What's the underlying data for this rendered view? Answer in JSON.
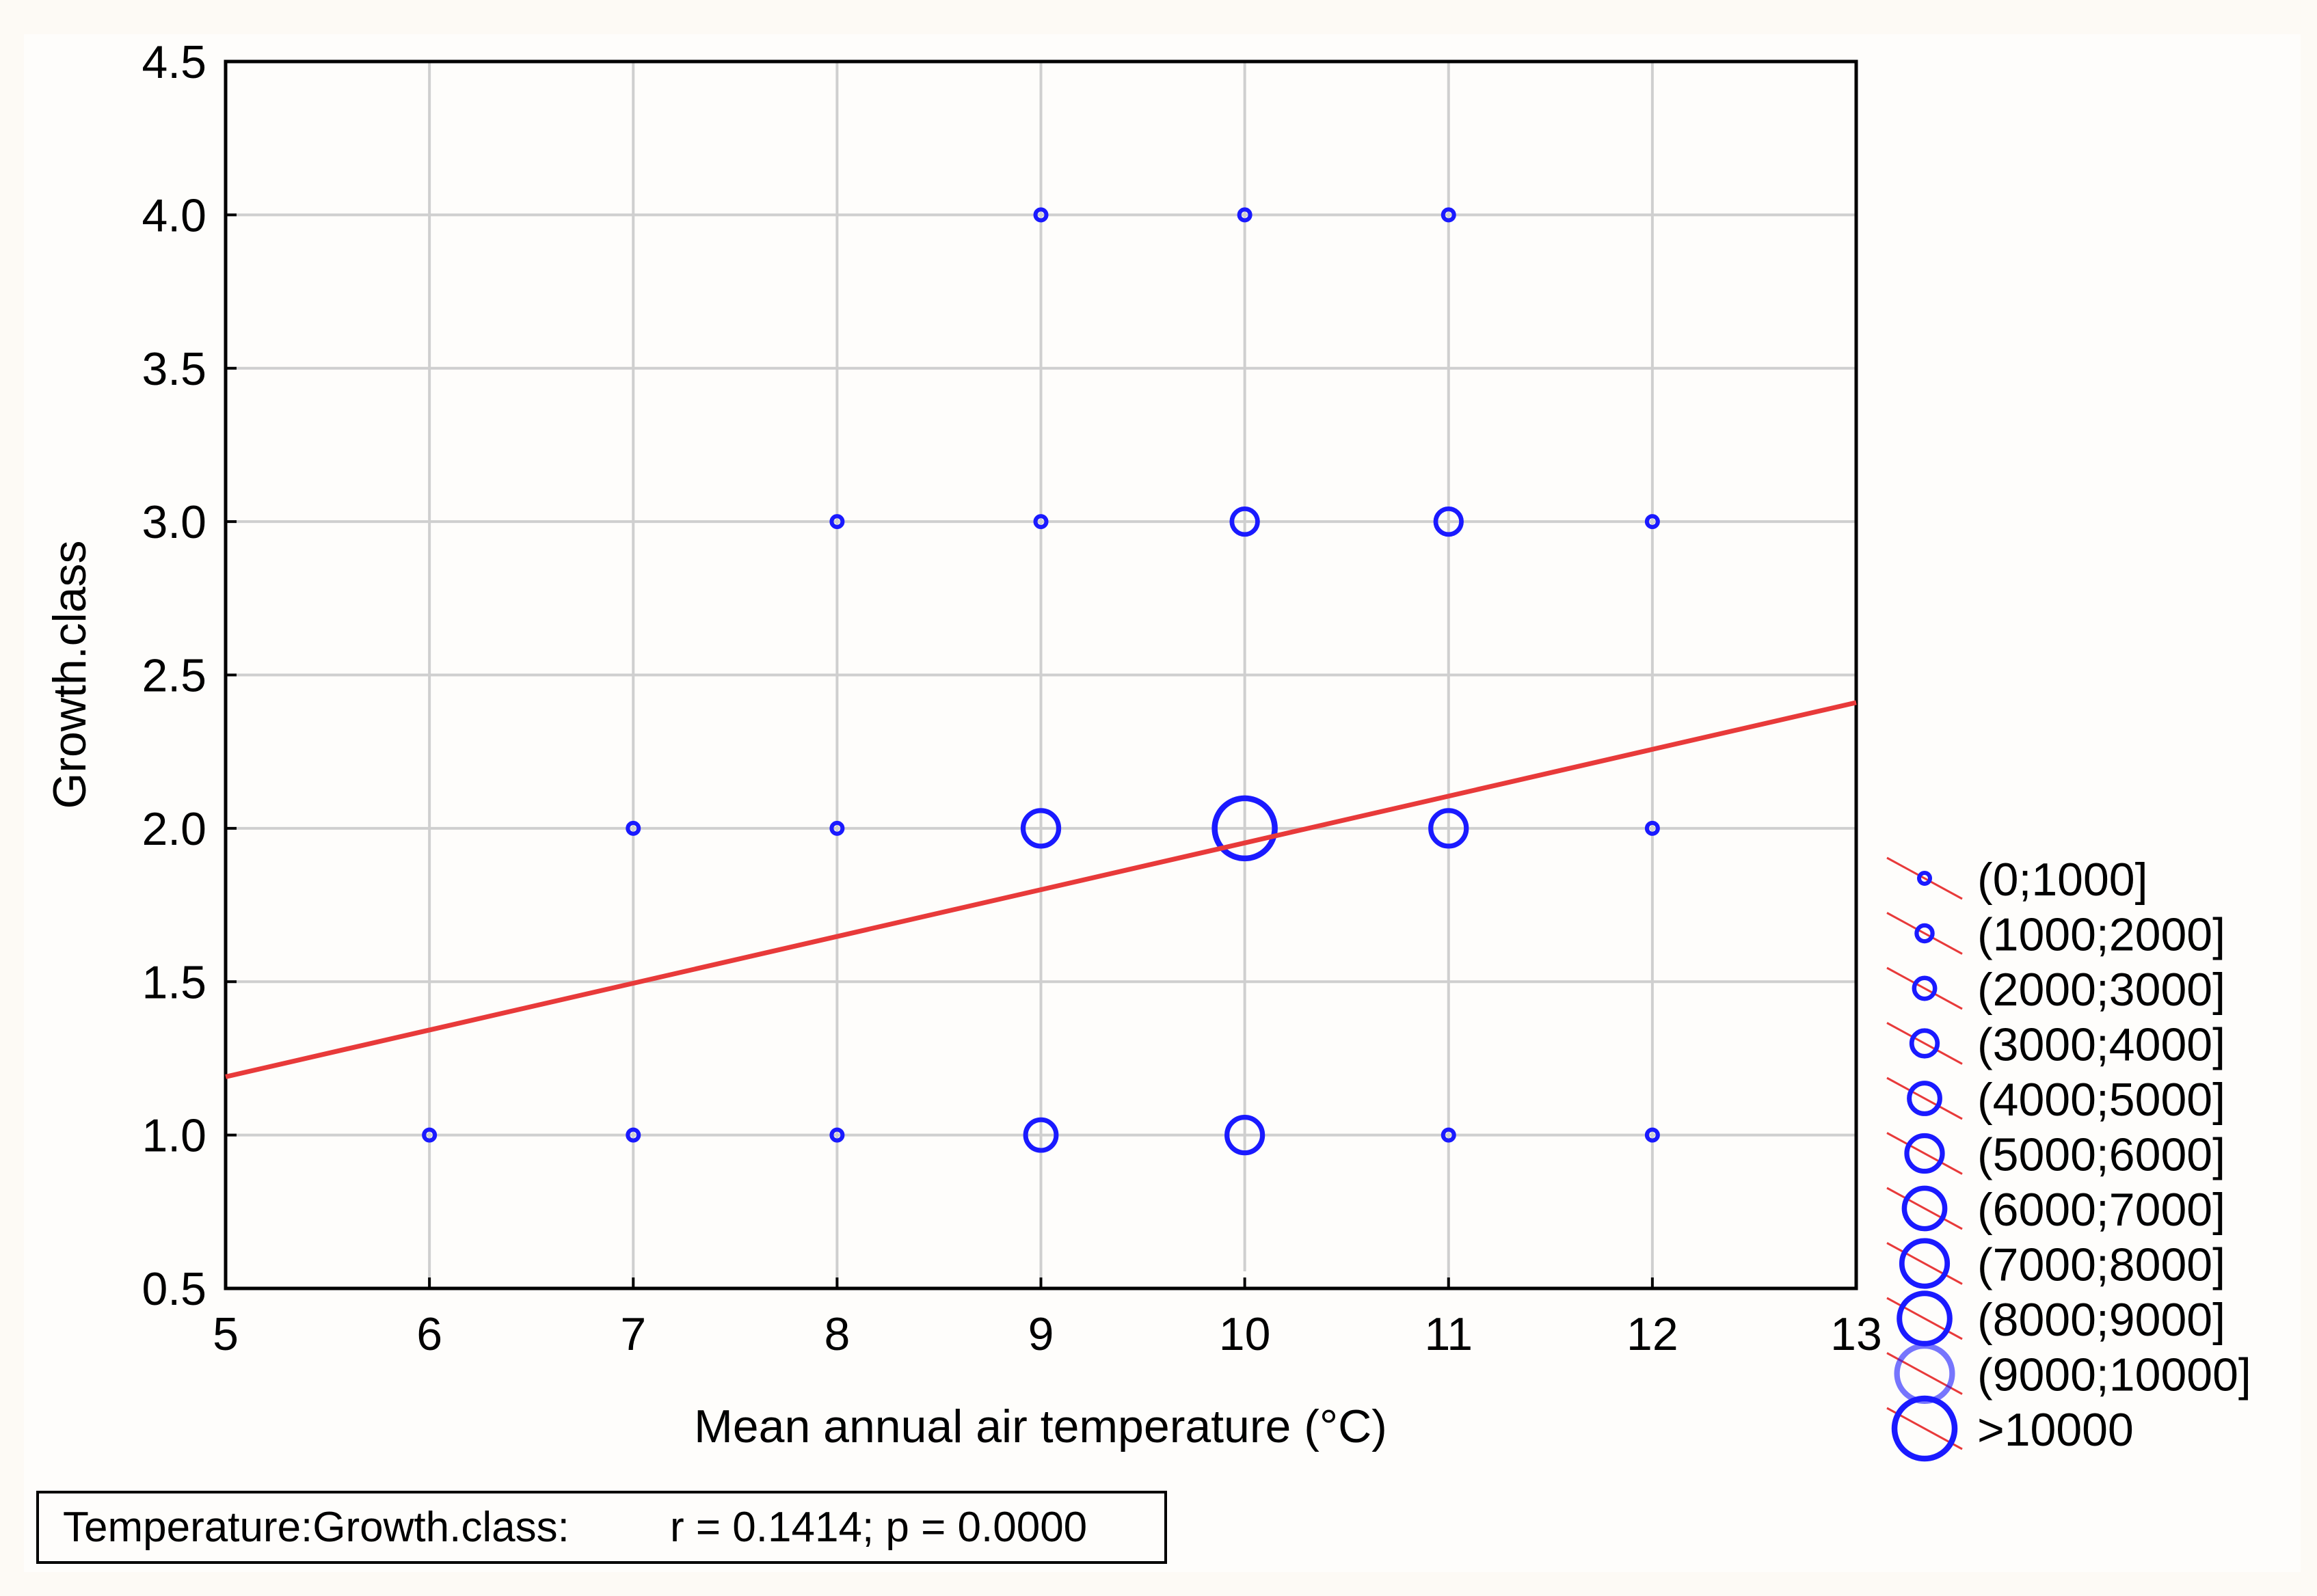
{
  "chart_data": {
    "type": "scatter",
    "title": "",
    "xlabel": "Mean annual air temperature (°C)",
    "ylabel": "Growth.class",
    "xlim": [
      5,
      13
    ],
    "ylim": [
      0.5,
      4.5
    ],
    "xticks": [
      5,
      6,
      7,
      8,
      9,
      10,
      11,
      12,
      13
    ],
    "xtick_labels": [
      "5",
      "6",
      "7",
      "8",
      "9",
      "10",
      "11",
      "12",
      "13"
    ],
    "yticks": [
      0.5,
      1.0,
      1.5,
      2.0,
      2.5,
      3.0,
      3.5,
      4.0,
      4.5
    ],
    "ytick_labels": [
      "0.5",
      "1.0",
      "1.5",
      "2.0",
      "2.5",
      "3.0",
      "3.5",
      "4.0",
      "4.5"
    ],
    "grid": true,
    "point_color": "#1a1aff",
    "line_color": "#e83a3a",
    "points": [
      {
        "x": 9,
        "y": 4.0,
        "cls": 0
      },
      {
        "x": 10,
        "y": 4.0,
        "cls": 0
      },
      {
        "x": 11,
        "y": 4.0,
        "cls": 0
      },
      {
        "x": 8,
        "y": 3.0,
        "cls": 0
      },
      {
        "x": 9,
        "y": 3.0,
        "cls": 0
      },
      {
        "x": 10,
        "y": 3.0,
        "cls": 3
      },
      {
        "x": 11,
        "y": 3.0,
        "cls": 3
      },
      {
        "x": 12,
        "y": 3.0,
        "cls": 0
      },
      {
        "x": 7,
        "y": 2.0,
        "cls": 0
      },
      {
        "x": 8,
        "y": 2.0,
        "cls": 0
      },
      {
        "x": 9,
        "y": 2.0,
        "cls": 5
      },
      {
        "x": 10,
        "y": 2.0,
        "cls": 10
      },
      {
        "x": 11,
        "y": 2.0,
        "cls": 5
      },
      {
        "x": 12,
        "y": 2.0,
        "cls": 0
      },
      {
        "x": 6,
        "y": 1.0,
        "cls": 0
      },
      {
        "x": 7,
        "y": 1.0,
        "cls": 0
      },
      {
        "x": 8,
        "y": 1.0,
        "cls": 0
      },
      {
        "x": 9,
        "y": 1.0,
        "cls": 4
      },
      {
        "x": 10,
        "y": 1.0,
        "cls": 5
      },
      {
        "x": 11,
        "y": 1.0,
        "cls": 0
      },
      {
        "x": 12,
        "y": 1.0,
        "cls": 0
      }
    ],
    "regression": {
      "x": [
        5,
        13
      ],
      "y": [
        1.19,
        2.41
      ]
    },
    "legend": {
      "placement": "right",
      "entries": [
        "(0;1000]",
        "(1000;2000]",
        "(2000;3000]",
        "(3000;4000]",
        "(4000;5000]",
        "(5000;6000]",
        "(6000;7000]",
        "(7000;8000]",
        "(8000;9000]",
        "(9000;10000]",
        ">10000"
      ]
    },
    "stats_label": "Temperature:Growth.class:",
    "stats_value": "r = 0.1414; p = 0.0000"
  }
}
